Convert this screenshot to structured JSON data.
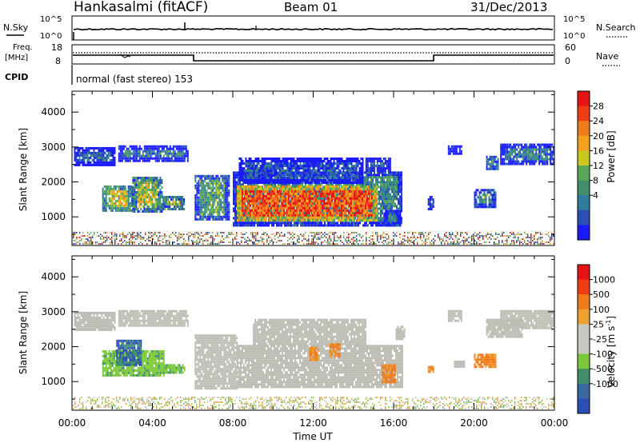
{
  "header": {
    "station": "Hankasalmi (fitACF)",
    "beam": "Beam 01",
    "date": "31/Dec/2013"
  },
  "noise_panel": {
    "left_label": "N.Sky",
    "left_ticks": [
      "10^5",
      "10^0"
    ],
    "right_ticks": [
      "10^5",
      "10^0"
    ],
    "right_label": "N.Search"
  },
  "freq_panel": {
    "left_label_1": "Freq.",
    "left_label_2": "[MHz]",
    "left_ticks": [
      "18",
      "8"
    ],
    "right_ticks": [
      "60",
      "0"
    ],
    "right_label": "Nave"
  },
  "cpid": {
    "label": "CPID",
    "mode_text": "normal (fast stereo) 153"
  },
  "colors": {
    "power_scale": [
      "#1a1aff",
      "#2a4fb5",
      "#2f7d9e",
      "#3f8f6a",
      "#5aa85a",
      "#c8c81e",
      "#f5a01e",
      "#f07a1e",
      "#f03c14",
      "#e61414"
    ],
    "velocity_scale": [
      "#2a4fb5",
      "#3a6aa0",
      "#3f8f6a",
      "#7bc83a",
      "#c8c8c0",
      "#c8c8c0",
      "#f0a030",
      "#f07a1e",
      "#f03c14",
      "#e61414"
    ],
    "ground_scatter": "#bdbdb5",
    "power_noise": [
      "#2a4fb5",
      "#5aa85a",
      "#e61414",
      "#f5a01e"
    ]
  },
  "chart_data": [
    {
      "type": "heatmap",
      "name": "power",
      "title": "",
      "xlabel": "",
      "ylabel": "Slant Range [km]",
      "xlim": [
        0,
        24
      ],
      "ylim": [
        180,
        4600
      ],
      "yticks": [
        "1000",
        "2000",
        "3000",
        "4000"
      ],
      "colorbar": {
        "label": "Power [dB]",
        "ticks": [
          "28",
          "24",
          "20",
          "16",
          "12",
          "8",
          "4"
        ],
        "range": [
          0,
          32
        ]
      },
      "regions": [
        {
          "t0": 0.1,
          "t1": 2.1,
          "r0": 2480,
          "r1": 3000,
          "level": 0.2
        },
        {
          "t0": 2.3,
          "t1": 5.8,
          "r0": 2580,
          "r1": 3050,
          "level": 0.25
        },
        {
          "t0": 1.5,
          "t1": 3.0,
          "r0": 1150,
          "r1": 1900,
          "level": 0.55
        },
        {
          "t0": 3.0,
          "t1": 4.5,
          "r0": 1150,
          "r1": 2150,
          "level": 0.5
        },
        {
          "t0": 4.5,
          "t1": 5.6,
          "r0": 1200,
          "r1": 1600,
          "level": 0.5
        },
        {
          "t0": 6.1,
          "t1": 7.8,
          "r0": 950,
          "r1": 2200,
          "level": 0.35
        },
        {
          "t0": 8.0,
          "t1": 16.4,
          "r0": 780,
          "r1": 2300,
          "level": 0.3
        },
        {
          "t0": 8.2,
          "t1": 15.2,
          "r0": 870,
          "r1": 1900,
          "level": 0.82
        },
        {
          "t0": 8.3,
          "t1": 14.5,
          "r0": 2000,
          "r1": 2700,
          "level": 0.15
        },
        {
          "t0": 14.6,
          "t1": 15.8,
          "r0": 2300,
          "r1": 2700,
          "level": 0.2
        },
        {
          "t0": 15.5,
          "t1": 16.3,
          "r0": 780,
          "r1": 1200,
          "level": 0.3
        },
        {
          "t0": 17.7,
          "t1": 18.0,
          "r0": 1200,
          "r1": 1600,
          "level": 0.3
        },
        {
          "t0": 20.0,
          "t1": 21.1,
          "r0": 1300,
          "r1": 1800,
          "level": 0.35
        },
        {
          "t0": 20.6,
          "t1": 21.2,
          "r0": 2350,
          "r1": 2750,
          "level": 0.4
        },
        {
          "t0": 21.3,
          "t1": 24.0,
          "r0": 2500,
          "r1": 3100,
          "level": 0.25
        },
        {
          "t0": 18.7,
          "t1": 19.4,
          "r0": 2800,
          "r1": 3050,
          "level": 0.2
        }
      ]
    },
    {
      "type": "heatmap",
      "name": "velocity",
      "title": "",
      "xlabel": "Time UT",
      "ylabel": "Slant Range [km]",
      "xlim": [
        0,
        24
      ],
      "ylim": [
        180,
        4600
      ],
      "xticks": [
        "00:00",
        "04:00",
        "08:00",
        "12:00",
        "16:00",
        "20:00",
        "00:00"
      ],
      "yticks": [
        "1000",
        "2000",
        "3000",
        "4000"
      ],
      "colorbar": {
        "label": "Velocity [m s",
        "label_sup": "-1",
        "label_close": "]",
        "ticks": [
          "1000",
          "500",
          "100",
          "25",
          "-25",
          "-100",
          "-500",
          "-1000"
        ]
      },
      "regions": [
        {
          "t0": 0.1,
          "t1": 2.1,
          "r0": 2500,
          "r1": 3000,
          "kind": "gs"
        },
        {
          "t0": 2.3,
          "t1": 5.8,
          "r0": 2580,
          "r1": 3050,
          "kind": "gs"
        },
        {
          "t0": 1.5,
          "t1": 4.6,
          "r0": 1200,
          "r1": 1900,
          "kind": "green"
        },
        {
          "t0": 2.2,
          "t1": 3.4,
          "r0": 1500,
          "r1": 2200,
          "kind": "blue"
        },
        {
          "t0": 4.6,
          "t1": 5.6,
          "r0": 1250,
          "r1": 1500,
          "kind": "green"
        },
        {
          "t0": 6.1,
          "t1": 8.2,
          "r0": 800,
          "r1": 2350,
          "kind": "gs"
        },
        {
          "t0": 8.2,
          "t1": 16.4,
          "r0": 850,
          "r1": 2050,
          "kind": "gs"
        },
        {
          "t0": 9.0,
          "t1": 14.6,
          "r0": 2050,
          "r1": 2800,
          "kind": "gs"
        },
        {
          "t0": 15.4,
          "t1": 16.1,
          "r0": 1000,
          "r1": 1500,
          "kind": "orange"
        },
        {
          "t0": 11.8,
          "t1": 12.2,
          "r0": 1650,
          "r1": 2000,
          "kind": "orange"
        },
        {
          "t0": 12.8,
          "t1": 13.3,
          "r0": 1750,
          "r1": 2100,
          "kind": "orange"
        },
        {
          "t0": 16.1,
          "t1": 16.5,
          "r0": 2200,
          "r1": 2600,
          "kind": "gs"
        },
        {
          "t0": 17.7,
          "t1": 18.0,
          "r0": 1250,
          "r1": 1450,
          "kind": "orange"
        },
        {
          "t0": 19.0,
          "t1": 19.5,
          "r0": 1400,
          "r1": 1600,
          "kind": "gs"
        },
        {
          "t0": 20.0,
          "t1": 21.1,
          "r0": 1450,
          "r1": 1800,
          "kind": "orange"
        },
        {
          "t0": 20.6,
          "t1": 22.4,
          "r0": 2300,
          "r1": 2800,
          "kind": "gs"
        },
        {
          "t0": 21.3,
          "t1": 24.0,
          "r0": 2550,
          "r1": 3050,
          "kind": "gs"
        },
        {
          "t0": 18.7,
          "t1": 19.4,
          "r0": 2750,
          "r1": 3050,
          "kind": "gs"
        }
      ]
    }
  ]
}
